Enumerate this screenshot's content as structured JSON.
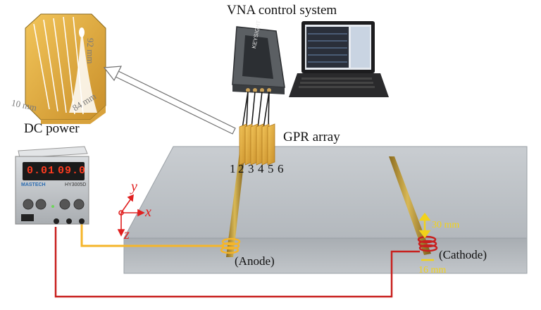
{
  "labels": {
    "vna_title": "VNA control system",
    "dc_power": "DC power",
    "gpr_array": "GPR array",
    "anode": "(Anode)",
    "cathode": "(Cathode)"
  },
  "antenna_dims": {
    "height": "92 mm",
    "width": "84 mm",
    "thickness": "10 mm"
  },
  "rebar_dims": {
    "spacing": "30 mm",
    "diameter": "16 mm"
  },
  "axes": {
    "x": "x",
    "y": "y",
    "z": "z"
  },
  "channels": [
    "1",
    "2",
    "3",
    "4",
    "5",
    "6"
  ],
  "power_supply": {
    "brand": "MASTECH",
    "model": "HY3005D",
    "current_display": "0.01",
    "voltage_display": "09.0"
  },
  "vna_brand": "KEYSIGHT",
  "colors": {
    "anode_wire": "#f5b52a",
    "cathode_wire": "#c8201e",
    "axis": "#e02020",
    "antenna_gold": "#e8b54a",
    "concrete": "#b9bec4"
  }
}
